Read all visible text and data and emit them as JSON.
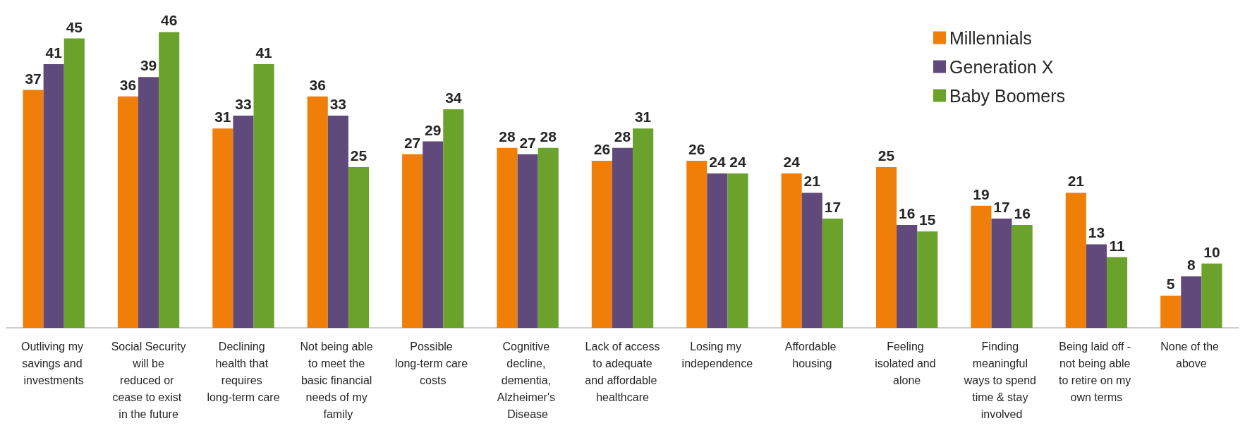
{
  "chart_data": {
    "type": "bar",
    "categories": [
      "Outliving my savings and investments",
      "Social Security will be reduced or cease to exist in the future",
      "Declining health that requires long-term care",
      "Not being able to meet the basic financial needs of my family",
      "Possible long-term care costs",
      "Cognitive decline, dementia, Alzheimer's Disease",
      "Lack of access to adequate and affordable healthcare",
      "Losing my independence",
      "Affordable housing",
      "Feeling isolated and alone",
      "Finding meaningful ways to spend time & stay involved",
      "Being laid off - not being able to retire on my own terms",
      "None of the above"
    ],
    "series": [
      {
        "name": "Millennials",
        "color": "#f07f09",
        "values": [
          37,
          36,
          31,
          36,
          27,
          28,
          26,
          26,
          24,
          25,
          19,
          21,
          5
        ]
      },
      {
        "name": "Generation X",
        "color": "#604a7b",
        "values": [
          41,
          39,
          33,
          33,
          29,
          27,
          28,
          24,
          21,
          16,
          17,
          13,
          8
        ]
      },
      {
        "name": "Baby Boomers",
        "color": "#6aa22b",
        "values": [
          45,
          46,
          41,
          25,
          34,
          28,
          31,
          24,
          17,
          15,
          16,
          11,
          10
        ]
      }
    ],
    "data_labels": true,
    "legend": "top right",
    "grid": false,
    "tick_labels": "x"
  }
}
